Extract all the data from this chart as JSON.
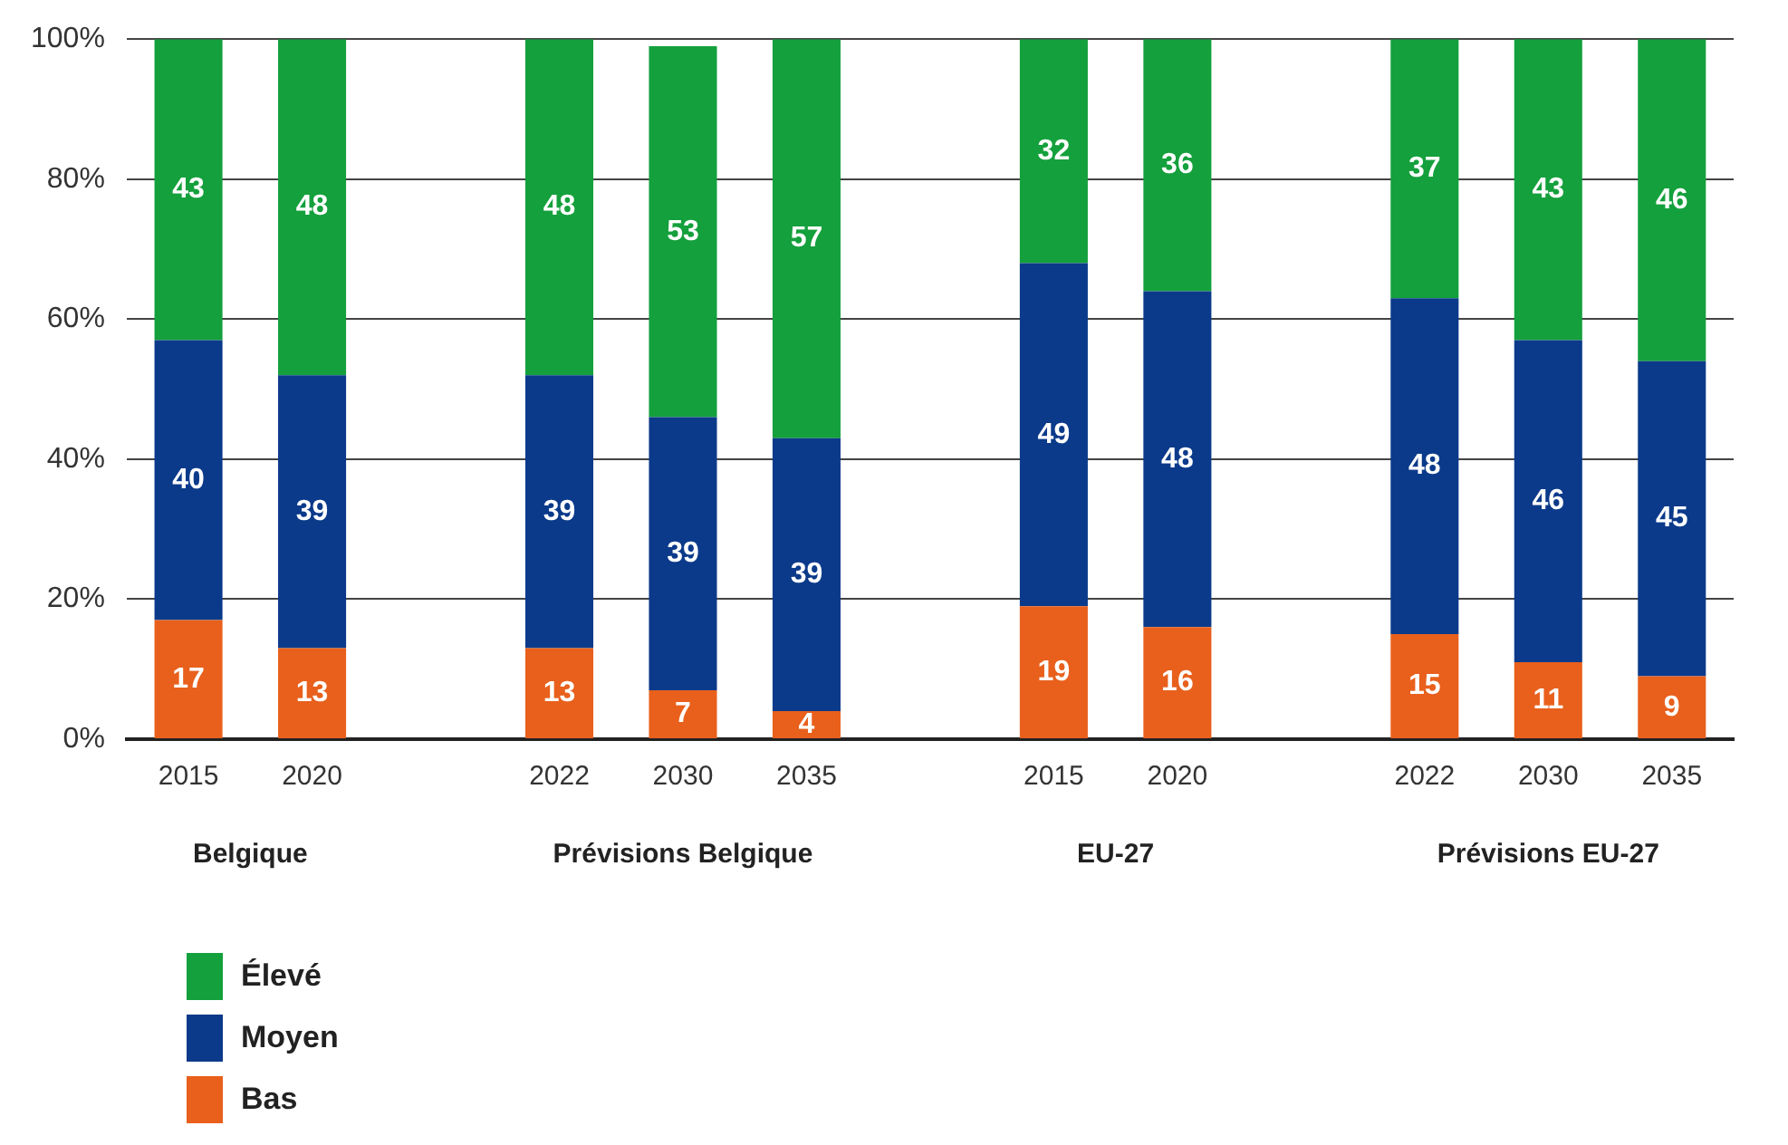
{
  "chart_data": {
    "type": "bar",
    "stacked": true,
    "categories": [
      "2015",
      "2020",
      null,
      "2022",
      "2030",
      "2035",
      null,
      "2015",
      "2020",
      null,
      "2022",
      "2030",
      "2035"
    ],
    "annotations": [
      "Belgique",
      "Prévisions Belgique",
      "EU-27",
      "Prévisions EU-27"
    ],
    "series": [
      {
        "name": "Bas",
        "color": "#e8601c",
        "values": [
          17,
          13,
          null,
          13,
          7,
          4,
          null,
          19,
          16,
          null,
          15,
          11,
          9
        ]
      },
      {
        "name": "Moyen",
        "color": "#0b3a8a",
        "values": [
          40,
          39,
          null,
          39,
          39,
          39,
          null,
          49,
          48,
          null,
          48,
          46,
          45
        ]
      },
      {
        "name": "Élevé",
        "color": "#14a03c",
        "values": [
          43,
          48,
          null,
          48,
          53,
          57,
          null,
          32,
          36,
          null,
          37,
          43,
          46
        ]
      }
    ],
    "ylim": [
      0,
      100
    ],
    "yticks": [
      {
        "value": 0,
        "label": "0%"
      },
      {
        "value": 20,
        "label": "20%"
      },
      {
        "value": 40,
        "label": "40%"
      },
      {
        "value": 60,
        "label": "60%"
      },
      {
        "value": 80,
        "label": "80%"
      },
      {
        "value": 100,
        "label": "100%"
      }
    ],
    "grid": "y",
    "legend": "bottom left",
    "data_labels": true
  }
}
